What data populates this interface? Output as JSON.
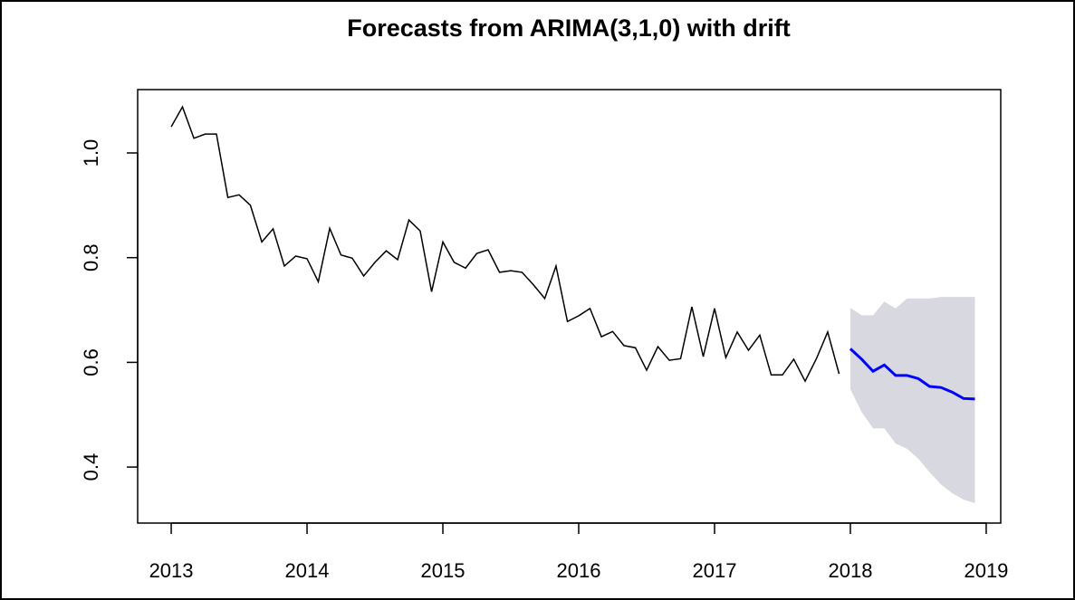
{
  "chart_data": {
    "type": "line",
    "title": "Forecasts from ARIMA(3,1,0) with drift",
    "xlim": [
      2012.753,
      2019.107
    ],
    "ylim": [
      0.293,
      1.121
    ],
    "xticks": [
      2013,
      2014,
      2015,
      2016,
      2017,
      2018,
      2019
    ],
    "yticks": [
      0.4,
      0.6,
      0.8,
      {
        "value": 1.0,
        "label": "1.0"
      }
    ],
    "series": [
      {
        "color": "#000000",
        "x": [
          2013,
          2013.083,
          2013.167,
          2013.25,
          2013.333,
          2013.417,
          2013.5,
          2013.583,
          2013.667,
          2013.75,
          2013.833,
          2013.917,
          2014,
          2014.083,
          2014.167,
          2014.25,
          2014.333,
          2014.417,
          2014.5,
          2014.583,
          2014.667,
          2014.75,
          2014.833,
          2014.917,
          2015,
          2015.083,
          2015.167,
          2015.25,
          2015.333,
          2015.417,
          2015.5,
          2015.583,
          2015.667,
          2015.75,
          2015.833,
          2015.917,
          2016,
          2016.083,
          2016.167,
          2016.25,
          2016.333,
          2016.417,
          2016.5,
          2016.583,
          2016.667,
          2016.75,
          2016.833,
          2016.917,
          2017,
          2017.083,
          2017.167,
          2017.25,
          2017.333,
          2017.417,
          2017.5,
          2017.583,
          2017.667,
          2017.75,
          2017.833,
          2017.917
        ],
        "values": [
          1.05,
          1.088,
          1.028,
          1.036,
          1.036,
          0.915,
          0.92,
          0.9,
          0.83,
          0.855,
          0.784,
          0.803,
          0.798,
          0.754,
          0.856,
          0.805,
          0.799,
          0.765,
          0.791,
          0.813,
          0.796,
          0.872,
          0.851,
          0.735,
          0.83,
          0.791,
          0.78,
          0.808,
          0.815,
          0.772,
          0.775,
          0.772,
          0.748,
          0.722,
          0.784,
          0.678,
          0.689,
          0.703,
          0.649,
          0.659,
          0.632,
          0.628,
          0.585,
          0.63,
          0.604,
          0.607,
          0.706,
          0.611,
          0.703,
          0.609,
          0.658,
          0.623,
          0.652,
          0.576,
          0.576,
          0.606,
          0.564,
          0.607,
          0.658,
          0.578
        ]
      },
      {
        "color": "#0000ff",
        "x": [
          2018,
          2018.083,
          2018.167,
          2018.25,
          2018.333,
          2018.417,
          2018.5,
          2018.583,
          2018.667,
          2018.75,
          2018.833,
          2018.917
        ],
        "values": [
          0.626,
          0.606,
          0.583,
          0.595,
          0.575,
          0.575,
          0.569,
          0.554,
          0.552,
          0.543,
          0.531,
          0.53
        ]
      }
    ],
    "interval": {
      "color": "#d8d8e0",
      "upper": [
        0.704,
        0.69,
        0.69,
        0.716,
        0.703,
        0.722,
        0.722,
        0.722,
        0.725,
        0.725,
        0.725,
        0.725
      ],
      "lower": [
        0.549,
        0.505,
        0.474,
        0.474,
        0.445,
        0.435,
        0.416,
        0.39,
        0.367,
        0.35,
        0.338,
        0.331
      ]
    }
  }
}
